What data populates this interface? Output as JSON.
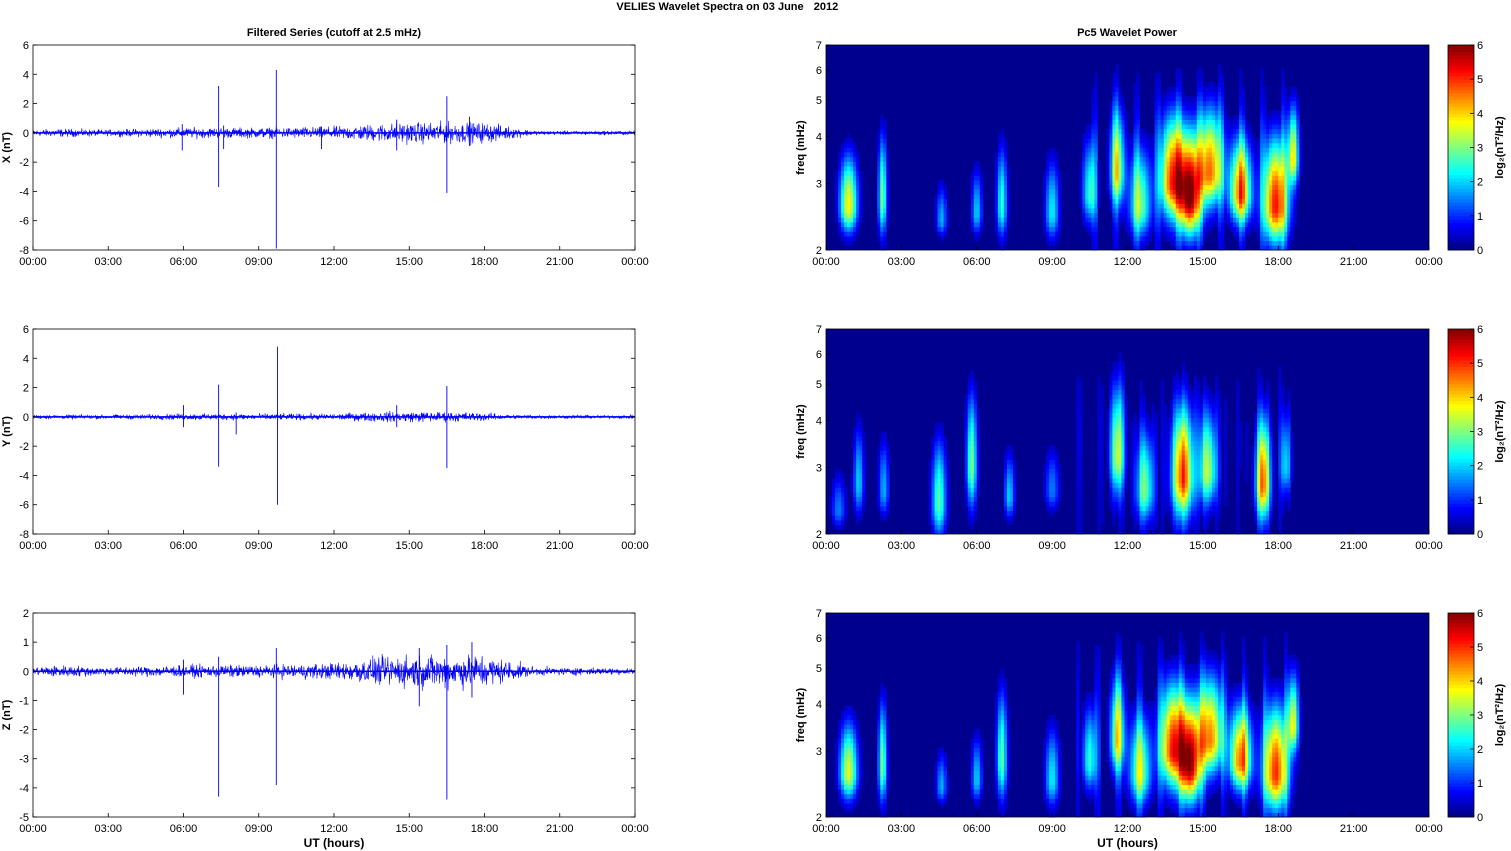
{
  "figure": {
    "title_left": "VELIES Wavelet Spectra on 03 June",
    "title_right": "2012",
    "left_column_title": "Filtered Series (cutoff at 2.5 mHz)",
    "right_column_title": "Pc5 Wavelet Power"
  },
  "colors": {
    "trace": "#0000ff",
    "background": "#00008f",
    "colormap": [
      "#00007f",
      "#0000ff",
      "#007fff",
      "#00ffff",
      "#7fff7f",
      "#ffff00",
      "#ff7f00",
      "#ff0000",
      "#7f0000"
    ]
  },
  "chart_data": [
    {
      "type": "line",
      "ylabel": "X (nT)",
      "xlabel": "",
      "ylim": [
        -8,
        6
      ],
      "yticks": [
        "6",
        "4",
        "2",
        "0",
        "-2",
        "-4",
        "-6",
        "-8"
      ],
      "xticks": [
        "00:00",
        "03:00",
        "06:00",
        "09:00",
        "12:00",
        "15:00",
        "18:00",
        "21:00",
        "00:00"
      ],
      "x_range_hours": [
        0,
        24
      ],
      "baseline_noise_nT": 0.15,
      "envelope": [
        [
          0,
          0.3
        ],
        [
          1,
          0.4
        ],
        [
          3,
          0.3
        ],
        [
          6,
          0.5
        ],
        [
          9,
          0.5
        ],
        [
          12,
          0.6
        ],
        [
          14,
          0.9
        ],
        [
          15,
          1.0
        ],
        [
          16,
          1.0
        ],
        [
          18,
          1.0
        ],
        [
          19,
          0.6
        ],
        [
          20,
          0.2
        ],
        [
          24,
          0.2
        ]
      ],
      "spikes": [
        {
          "t": 5.95,
          "min": -1.2,
          "max": 0.6
        },
        {
          "t": 7.4,
          "min": -3.7,
          "max": 3.2
        },
        {
          "t": 7.6,
          "min": -1.1,
          "max": 0.5
        },
        {
          "t": 9.7,
          "min": -7.9,
          "max": 4.3
        },
        {
          "t": 11.5,
          "min": -1.1,
          "max": 0.4
        },
        {
          "t": 14.5,
          "min": -1.2,
          "max": 0.9
        },
        {
          "t": 16.5,
          "min": -4.1,
          "max": 2.5
        },
        {
          "t": 17.4,
          "min": -0.9,
          "max": 1.1
        }
      ]
    },
    {
      "type": "line",
      "ylabel": "Y (nT)",
      "xlabel": "",
      "ylim": [
        -8,
        6
      ],
      "yticks": [
        "6",
        "4",
        "2",
        "0",
        "-2",
        "-4",
        "-6",
        "-8"
      ],
      "xticks": [
        "00:00",
        "03:00",
        "06:00",
        "09:00",
        "12:00",
        "15:00",
        "18:00",
        "21:00",
        "00:00"
      ],
      "x_range_hours": [
        0,
        24
      ],
      "baseline_noise_nT": 0.1,
      "envelope": [
        [
          0,
          0.2
        ],
        [
          3,
          0.2
        ],
        [
          6,
          0.3
        ],
        [
          9,
          0.3
        ],
        [
          12,
          0.3
        ],
        [
          14,
          0.5
        ],
        [
          15,
          0.5
        ],
        [
          16,
          0.5
        ],
        [
          18,
          0.4
        ],
        [
          19,
          0.2
        ],
        [
          24,
          0.15
        ]
      ],
      "spikes": [
        {
          "t": 6.0,
          "min": -0.7,
          "max": 0.8
        },
        {
          "t": 7.4,
          "min": -3.4,
          "max": 2.2
        },
        {
          "t": 8.1,
          "min": -1.2,
          "max": 0.3
        },
        {
          "t": 9.75,
          "min": -6.0,
          "max": 4.8
        },
        {
          "t": 14.5,
          "min": -0.7,
          "max": 0.8
        },
        {
          "t": 16.5,
          "min": -3.5,
          "max": 2.1
        }
      ]
    },
    {
      "type": "line",
      "ylabel": "Z (nT)",
      "xlabel": "UT (hours)",
      "ylim": [
        -5,
        2
      ],
      "yticks": [
        "2",
        "1",
        "0",
        "-1",
        "-2",
        "-3",
        "-4",
        "-5"
      ],
      "xticks": [
        "00:00",
        "03:00",
        "06:00",
        "09:00",
        "12:00",
        "15:00",
        "18:00",
        "21:00",
        "00:00"
      ],
      "x_range_hours": [
        0,
        24
      ],
      "baseline_noise_nT": 0.08,
      "envelope": [
        [
          0,
          0.2
        ],
        [
          1,
          0.3
        ],
        [
          3,
          0.2
        ],
        [
          6,
          0.3
        ],
        [
          9,
          0.3
        ],
        [
          12,
          0.4
        ],
        [
          14,
          0.7
        ],
        [
          15,
          0.8
        ],
        [
          16,
          0.8
        ],
        [
          18,
          0.8
        ],
        [
          19,
          0.5
        ],
        [
          20,
          0.2
        ],
        [
          24,
          0.15
        ]
      ],
      "spikes": [
        {
          "t": 6.0,
          "min": -0.8,
          "max": 0.4
        },
        {
          "t": 7.4,
          "min": -4.3,
          "max": 0.5
        },
        {
          "t": 9.7,
          "min": -3.9,
          "max": 0.8
        },
        {
          "t": 15.4,
          "min": -1.2,
          "max": 0.8
        },
        {
          "t": 16.5,
          "min": -4.4,
          "max": 0.9
        },
        {
          "t": 17.5,
          "min": -0.9,
          "max": 1.0
        }
      ]
    },
    {
      "type": "heatmap",
      "ylabel": "freq (mHz)",
      "xlabel": "",
      "yscale": "log",
      "ylim": [
        2,
        7
      ],
      "yticks": [
        "2",
        "3",
        "4",
        "5",
        "6",
        "7"
      ],
      "xticks": [
        "00:00",
        "03:00",
        "06:00",
        "09:00",
        "12:00",
        "15:00",
        "18:00",
        "21:00",
        "00:00"
      ],
      "x_range_hours": [
        0,
        24
      ],
      "colorbar_label": "log₂(nT²/Hz)",
      "colorbar_ticks": [
        "6",
        "5",
        "4",
        "3",
        "2",
        "1",
        "0"
      ],
      "clim": [
        0,
        6
      ],
      "max_time_hours": 18.9,
      "blobs": [
        {
          "t": 0.9,
          "f": 2.6,
          "amp": 3.8,
          "wt": 0.25,
          "wf": 0.25
        },
        {
          "t": 2.25,
          "f": 2.7,
          "amp": 3.0,
          "wt": 0.12,
          "wf": 0.35
        },
        {
          "t": 4.6,
          "f": 2.4,
          "amp": 1.8,
          "wt": 0.15,
          "wf": 0.15
        },
        {
          "t": 6.0,
          "f": 2.5,
          "amp": 2.0,
          "wt": 0.15,
          "wf": 0.2
        },
        {
          "t": 7.0,
          "f": 2.6,
          "amp": 2.5,
          "wt": 0.15,
          "wf": 0.3
        },
        {
          "t": 9.0,
          "f": 2.5,
          "amp": 2.2,
          "wt": 0.2,
          "wf": 0.25
        },
        {
          "t": 10.5,
          "f": 2.8,
          "amp": 2.5,
          "wt": 0.2,
          "wf": 0.3
        },
        {
          "t": 11.6,
          "f": 3.2,
          "amp": 3.5,
          "wt": 0.2,
          "wf": 0.4
        },
        {
          "t": 12.5,
          "f": 2.6,
          "amp": 3.0,
          "wt": 0.3,
          "wf": 0.3
        },
        {
          "t": 13.8,
          "f": 3.0,
          "amp": 5.0,
          "wt": 0.35,
          "wf": 0.4
        },
        {
          "t": 14.5,
          "f": 2.7,
          "amp": 5.5,
          "wt": 0.3,
          "wf": 0.35
        },
        {
          "t": 15.3,
          "f": 3.2,
          "amp": 4.5,
          "wt": 0.35,
          "wf": 0.4
        },
        {
          "t": 16.5,
          "f": 2.8,
          "amp": 4.6,
          "wt": 0.3,
          "wf": 0.3
        },
        {
          "t": 17.9,
          "f": 2.6,
          "amp": 5.2,
          "wt": 0.35,
          "wf": 0.35
        },
        {
          "t": 18.6,
          "f": 3.5,
          "amp": 3.5,
          "wt": 0.15,
          "wf": 0.35
        }
      ]
    },
    {
      "type": "heatmap",
      "ylabel": "freq (mHz)",
      "xlabel": "",
      "yscale": "log",
      "ylim": [
        2,
        7
      ],
      "yticks": [
        "2",
        "3",
        "4",
        "5",
        "6",
        "7"
      ],
      "xticks": [
        "00:00",
        "03:00",
        "06:00",
        "09:00",
        "12:00",
        "15:00",
        "18:00",
        "21:00",
        "00:00"
      ],
      "x_range_hours": [
        0,
        24
      ],
      "colorbar_label": "log₂(nT²/Hz)",
      "colorbar_ticks": [
        "6",
        "5",
        "4",
        "3",
        "2",
        "1",
        "0"
      ],
      "clim": [
        0,
        6
      ],
      "max_time_hours": 19.0,
      "blobs": [
        {
          "t": 0.5,
          "f": 2.3,
          "amp": 1.5,
          "wt": 0.2,
          "wf": 0.15
        },
        {
          "t": 1.3,
          "f": 2.7,
          "amp": 2.0,
          "wt": 0.15,
          "wf": 0.3
        },
        {
          "t": 2.3,
          "f": 2.6,
          "amp": 1.8,
          "wt": 0.15,
          "wf": 0.25
        },
        {
          "t": 4.5,
          "f": 2.4,
          "amp": 2.8,
          "wt": 0.2,
          "wf": 0.3
        },
        {
          "t": 5.8,
          "f": 3.0,
          "amp": 3.0,
          "wt": 0.15,
          "wf": 0.45
        },
        {
          "t": 7.3,
          "f": 2.5,
          "amp": 2.0,
          "wt": 0.15,
          "wf": 0.2
        },
        {
          "t": 9.0,
          "f": 2.6,
          "amp": 1.5,
          "wt": 0.2,
          "wf": 0.2
        },
        {
          "t": 11.6,
          "f": 3.2,
          "amp": 3.3,
          "wt": 0.2,
          "wf": 0.45
        },
        {
          "t": 12.7,
          "f": 2.6,
          "amp": 2.8,
          "wt": 0.25,
          "wf": 0.3
        },
        {
          "t": 14.2,
          "f": 2.8,
          "amp": 4.8,
          "wt": 0.3,
          "wf": 0.4
        },
        {
          "t": 15.2,
          "f": 2.9,
          "amp": 3.2,
          "wt": 0.25,
          "wf": 0.35
        },
        {
          "t": 17.4,
          "f": 2.7,
          "amp": 4.6,
          "wt": 0.2,
          "wf": 0.35
        },
        {
          "t": 18.3,
          "f": 3.0,
          "amp": 2.0,
          "wt": 0.15,
          "wf": 0.3
        }
      ]
    },
    {
      "type": "heatmap",
      "ylabel": "freq (mHz)",
      "xlabel": "UT (hours)",
      "yscale": "log",
      "ylim": [
        2,
        7
      ],
      "yticks": [
        "2",
        "3",
        "4",
        "5",
        "6",
        "7"
      ],
      "xticks": [
        "00:00",
        "03:00",
        "06:00",
        "09:00",
        "12:00",
        "15:00",
        "18:00",
        "21:00",
        "00:00"
      ],
      "x_range_hours": [
        0,
        24
      ],
      "colorbar_label": "log₂(nT²/Hz)",
      "colorbar_ticks": [
        "6",
        "5",
        "4",
        "3",
        "2",
        "1",
        "0"
      ],
      "clim": [
        0,
        6
      ],
      "max_time_hours": 18.9,
      "blobs": [
        {
          "t": 0.9,
          "f": 2.6,
          "amp": 3.6,
          "wt": 0.25,
          "wf": 0.25
        },
        {
          "t": 2.25,
          "f": 2.7,
          "amp": 3.0,
          "wt": 0.12,
          "wf": 0.35
        },
        {
          "t": 4.6,
          "f": 2.4,
          "amp": 1.8,
          "wt": 0.15,
          "wf": 0.15
        },
        {
          "t": 6.0,
          "f": 2.5,
          "amp": 2.0,
          "wt": 0.15,
          "wf": 0.2
        },
        {
          "t": 7.0,
          "f": 2.8,
          "amp": 2.8,
          "wt": 0.15,
          "wf": 0.4
        },
        {
          "t": 9.0,
          "f": 2.5,
          "amp": 2.2,
          "wt": 0.2,
          "wf": 0.25
        },
        {
          "t": 10.5,
          "f": 2.8,
          "amp": 2.5,
          "wt": 0.2,
          "wf": 0.3
        },
        {
          "t": 11.6,
          "f": 3.2,
          "amp": 3.5,
          "wt": 0.2,
          "wf": 0.4
        },
        {
          "t": 12.5,
          "f": 2.6,
          "amp": 3.2,
          "wt": 0.3,
          "wf": 0.3
        },
        {
          "t": 13.8,
          "f": 3.0,
          "amp": 5.0,
          "wt": 0.35,
          "wf": 0.4
        },
        {
          "t": 14.5,
          "f": 2.7,
          "amp": 5.3,
          "wt": 0.3,
          "wf": 0.35
        },
        {
          "t": 15.3,
          "f": 3.2,
          "amp": 4.4,
          "wt": 0.35,
          "wf": 0.4
        },
        {
          "t": 16.5,
          "f": 2.8,
          "amp": 4.6,
          "wt": 0.3,
          "wf": 0.3
        },
        {
          "t": 17.9,
          "f": 2.6,
          "amp": 5.0,
          "wt": 0.35,
          "wf": 0.35
        },
        {
          "t": 18.6,
          "f": 3.5,
          "amp": 3.4,
          "wt": 0.15,
          "wf": 0.35
        }
      ]
    }
  ]
}
